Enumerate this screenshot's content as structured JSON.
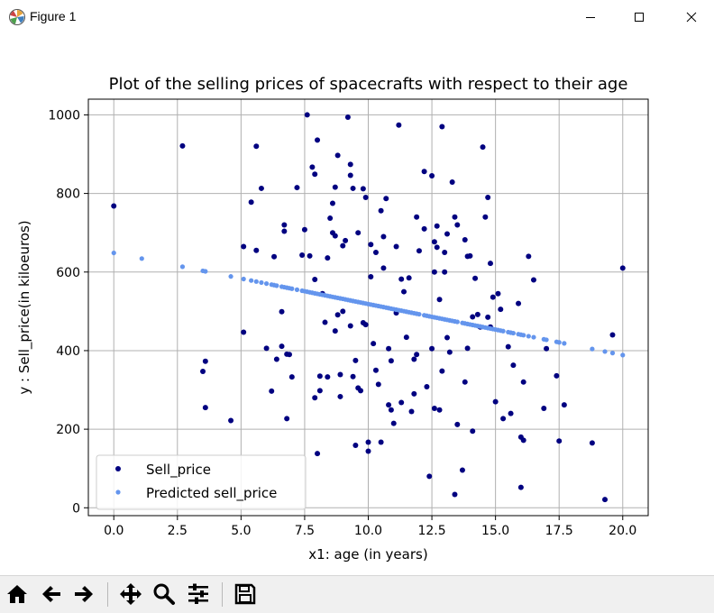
{
  "window": {
    "title": "Figure 1",
    "icons": {
      "app": "matplotlib-logo-icon",
      "minimize": "minimize-icon",
      "maximize": "maximize-icon",
      "close": "close-icon"
    }
  },
  "toolbar": {
    "buttons": [
      {
        "name": "home-button",
        "icon": "home-icon"
      },
      {
        "name": "back-button",
        "icon": "arrow-left-icon"
      },
      {
        "name": "forward-button",
        "icon": "arrow-right-icon"
      },
      {
        "name": "pan-button",
        "icon": "move-icon"
      },
      {
        "name": "zoom-button",
        "icon": "magnifier-icon"
      },
      {
        "name": "configure-subplots-button",
        "icon": "sliders-icon"
      },
      {
        "name": "save-button",
        "icon": "floppy-disk-icon"
      }
    ]
  },
  "chart_data": {
    "type": "scatter",
    "title": "Plot of the selling prices of spacecrafts with respect to their age",
    "xlabel": "x1: age (in years)",
    "ylabel": "y : Sell_price(in kiloeuros)",
    "xlim": [
      -1,
      21
    ],
    "ylim": [
      -20,
      1040
    ],
    "xticks": [
      0.0,
      2.5,
      5.0,
      7.5,
      10.0,
      12.5,
      15.0,
      17.5,
      20.0
    ],
    "xtick_labels": [
      "0.0",
      "2.5",
      "5.0",
      "7.5",
      "10.0",
      "12.5",
      "15.0",
      "17.5",
      "20.0"
    ],
    "yticks": [
      0,
      200,
      400,
      600,
      800,
      1000
    ],
    "ytick_labels": [
      "0",
      "200",
      "400",
      "600",
      "800",
      "1000"
    ],
    "grid": true,
    "legend": {
      "position": "lower-left",
      "entries": [
        "Sell_price",
        "Predicted sell_price"
      ]
    },
    "colors": {
      "actual": "#000080",
      "predicted": "#6495ed",
      "grid": "#b0b0b0"
    },
    "series": [
      {
        "name": "Sell_price",
        "style": "dots",
        "points": [
          [
            0.0,
            768
          ],
          [
            2.7,
            921
          ],
          [
            3.5,
            347
          ],
          [
            3.6,
            373
          ],
          [
            3.6,
            255
          ],
          [
            4.6,
            222
          ],
          [
            5.1,
            665
          ],
          [
            5.1,
            447
          ],
          [
            5.4,
            778
          ],
          [
            5.6,
            920
          ],
          [
            5.6,
            655
          ],
          [
            5.8,
            813
          ],
          [
            6.0,
            406
          ],
          [
            6.2,
            297
          ],
          [
            6.3,
            639
          ],
          [
            6.4,
            378
          ],
          [
            6.6,
            499
          ],
          [
            6.6,
            411
          ],
          [
            6.7,
            720
          ],
          [
            6.7,
            704
          ],
          [
            6.8,
            391
          ],
          [
            6.8,
            227
          ],
          [
            6.9,
            390
          ],
          [
            7.0,
            333
          ],
          [
            7.2,
            815
          ],
          [
            7.4,
            643
          ],
          [
            7.5,
            708
          ],
          [
            7.6,
            1000
          ],
          [
            7.7,
            641
          ],
          [
            7.8,
            867
          ],
          [
            7.9,
            849
          ],
          [
            7.9,
            280
          ],
          [
            7.9,
            581
          ],
          [
            8.0,
            138
          ],
          [
            8.0,
            936
          ],
          [
            8.1,
            335
          ],
          [
            8.1,
            298
          ],
          [
            8.2,
            545
          ],
          [
            8.3,
            472
          ],
          [
            8.4,
            333
          ],
          [
            8.4,
            636
          ],
          [
            8.5,
            737
          ],
          [
            8.6,
            700
          ],
          [
            8.6,
            775
          ],
          [
            8.7,
            816
          ],
          [
            8.7,
            692
          ],
          [
            8.7,
            450
          ],
          [
            8.8,
            897
          ],
          [
            8.8,
            491
          ],
          [
            8.9,
            283
          ],
          [
            8.9,
            339
          ],
          [
            9.0,
            667
          ],
          [
            9.0,
            500
          ],
          [
            9.1,
            680
          ],
          [
            9.2,
            994
          ],
          [
            9.3,
            874
          ],
          [
            9.3,
            846
          ],
          [
            9.3,
            463
          ],
          [
            9.4,
            813
          ],
          [
            9.4,
            334
          ],
          [
            9.5,
            159
          ],
          [
            9.5,
            375
          ],
          [
            9.6,
            305
          ],
          [
            9.6,
            700
          ],
          [
            9.7,
            298
          ],
          [
            9.8,
            812
          ],
          [
            9.8,
            471
          ],
          [
            9.9,
            790
          ],
          [
            9.9,
            466
          ],
          [
            10.0,
            144
          ],
          [
            10.0,
            167
          ],
          [
            10.1,
            670
          ],
          [
            10.1,
            588
          ],
          [
            10.2,
            418
          ],
          [
            10.3,
            650
          ],
          [
            10.3,
            350
          ],
          [
            10.4,
            314
          ],
          [
            10.5,
            756
          ],
          [
            10.5,
            167
          ],
          [
            10.6,
            690
          ],
          [
            10.6,
            610
          ],
          [
            10.7,
            787
          ],
          [
            10.8,
            405
          ],
          [
            10.8,
            262
          ],
          [
            10.9,
            249
          ],
          [
            10.9,
            374
          ],
          [
            11.0,
            215
          ],
          [
            11.1,
            665
          ],
          [
            11.1,
            496
          ],
          [
            11.2,
            974
          ],
          [
            11.3,
            582
          ],
          [
            11.3,
            268
          ],
          [
            11.4,
            550
          ],
          [
            11.5,
            434
          ],
          [
            11.6,
            585
          ],
          [
            11.7,
            245
          ],
          [
            11.8,
            378
          ],
          [
            11.8,
            290
          ],
          [
            11.9,
            740
          ],
          [
            11.9,
            390
          ],
          [
            12.0,
            654
          ],
          [
            12.2,
            710
          ],
          [
            12.2,
            856
          ],
          [
            12.3,
            308
          ],
          [
            12.4,
            80
          ],
          [
            12.5,
            845
          ],
          [
            12.5,
            405
          ],
          [
            12.6,
            677
          ],
          [
            12.6,
            600
          ],
          [
            12.6,
            253
          ],
          [
            12.7,
            717
          ],
          [
            12.7,
            663
          ],
          [
            12.8,
            530
          ],
          [
            12.8,
            249
          ],
          [
            12.9,
            970
          ],
          [
            12.9,
            348
          ],
          [
            13.0,
            650
          ],
          [
            13.0,
            600
          ],
          [
            13.1,
            697
          ],
          [
            13.1,
            433
          ],
          [
            13.2,
            396
          ],
          [
            13.3,
            829
          ],
          [
            13.4,
            740
          ],
          [
            13.4,
            34
          ],
          [
            13.5,
            720
          ],
          [
            13.5,
            212
          ],
          [
            13.7,
            96
          ],
          [
            13.8,
            682
          ],
          [
            13.8,
            320
          ],
          [
            13.9,
            640
          ],
          [
            13.9,
            406
          ],
          [
            14.0,
            641
          ],
          [
            14.1,
            195
          ],
          [
            14.1,
            486
          ],
          [
            14.2,
            584
          ],
          [
            14.3,
            492
          ],
          [
            14.4,
            460
          ],
          [
            14.5,
            918
          ],
          [
            14.6,
            740
          ],
          [
            14.7,
            790
          ],
          [
            14.7,
            485
          ],
          [
            14.8,
            622
          ],
          [
            14.8,
            460
          ],
          [
            14.9,
            536
          ],
          [
            15.0,
            270
          ],
          [
            15.1,
            545
          ],
          [
            15.2,
            505
          ],
          [
            15.3,
            227
          ],
          [
            15.5,
            410
          ],
          [
            15.6,
            240
          ],
          [
            15.7,
            363
          ],
          [
            15.9,
            520
          ],
          [
            16.0,
            180
          ],
          [
            16.1,
            320
          ],
          [
            16.1,
            172
          ],
          [
            16.3,
            640
          ],
          [
            16.5,
            580
          ],
          [
            16.9,
            253
          ],
          [
            17.0,
            405
          ],
          [
            17.4,
            336
          ],
          [
            17.5,
            170
          ],
          [
            17.7,
            262
          ],
          [
            18.8,
            165
          ],
          [
            19.3,
            21
          ],
          [
            19.6,
            440
          ],
          [
            20.0,
            610
          ],
          [
            16.0,
            52
          ]
        ]
      },
      {
        "name": "Predicted sell_price",
        "style": "dots",
        "model": {
          "intercept": 648.6,
          "slope": -13.0
        },
        "x": [
          0.0,
          1.1,
          2.7,
          3.5,
          3.6,
          4.6,
          5.1,
          5.4,
          5.6,
          5.8,
          6.0,
          6.2,
          6.3,
          6.4,
          6.6,
          6.7,
          6.8,
          6.9,
          7.0,
          7.2,
          7.4,
          7.5,
          7.6,
          7.7,
          7.8,
          7.9,
          8.0,
          8.1,
          8.2,
          8.3,
          8.4,
          8.5,
          8.6,
          8.7,
          8.8,
          8.9,
          9.0,
          9.1,
          9.2,
          9.3,
          9.4,
          9.5,
          9.6,
          9.7,
          9.8,
          9.9,
          10.0,
          10.1,
          10.2,
          10.3,
          10.4,
          10.5,
          10.6,
          10.7,
          10.8,
          10.9,
          11.0,
          11.1,
          11.2,
          11.3,
          11.4,
          11.5,
          11.6,
          11.7,
          11.8,
          11.9,
          12.0,
          12.2,
          12.3,
          12.4,
          12.5,
          12.6,
          12.7,
          12.8,
          12.9,
          13.0,
          13.1,
          13.2,
          13.3,
          13.4,
          13.5,
          13.7,
          13.8,
          13.9,
          14.0,
          14.1,
          14.2,
          14.3,
          14.4,
          14.5,
          14.6,
          14.7,
          14.8,
          14.9,
          15.0,
          15.1,
          15.2,
          15.3,
          15.5,
          15.6,
          15.7,
          15.9,
          16.0,
          16.1,
          16.3,
          16.5,
          16.9,
          17.0,
          17.4,
          17.5,
          17.7,
          18.8,
          19.3,
          19.6,
          20.0
        ]
      }
    ]
  }
}
